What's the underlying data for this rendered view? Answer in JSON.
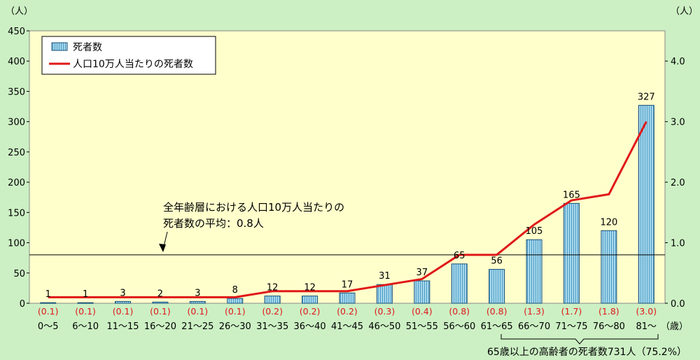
{
  "chart_data": {
    "type": "bar",
    "categories": [
      "0〜5",
      "6〜10",
      "11〜15",
      "16〜20",
      "21〜25",
      "26〜30",
      "31〜35",
      "36〜40",
      "41〜45",
      "46〜50",
      "51〜55",
      "56〜60",
      "61〜65",
      "66〜70",
      "71〜75",
      "76〜80",
      "81〜"
    ],
    "series": [
      {
        "name": "死者数",
        "kind": "bar",
        "axis": "left",
        "values": [
          1,
          1,
          3,
          2,
          3,
          8,
          12,
          12,
          17,
          31,
          37,
          65,
          56,
          105,
          165,
          120,
          327
        ]
      },
      {
        "name": "人口10万人当たりの死者数",
        "kind": "line",
        "axis": "right",
        "values": [
          0.1,
          0.1,
          0.1,
          0.1,
          0.1,
          0.1,
          0.2,
          0.2,
          0.2,
          0.3,
          0.4,
          0.8,
          0.8,
          1.3,
          1.7,
          1.8,
          3.0
        ],
        "labels": [
          "(0.1)",
          "(0.1)",
          "(0.1)",
          "(0.1)",
          "(0.1)",
          "(0.1)",
          "(0.2)",
          "(0.2)",
          "(0.2)",
          "(0.3)",
          "(0.4)",
          "(0.8)",
          "(0.8)",
          "(1.3)",
          "(1.7)",
          "(1.8)",
          "(3.0)"
        ]
      }
    ],
    "y_left": {
      "unit": "（人）",
      "min": 0,
      "max": 450,
      "ticks": [
        0,
        50,
        100,
        150,
        200,
        250,
        300,
        350,
        400,
        450
      ]
    },
    "y_right": {
      "unit": "（人）",
      "min": 0,
      "max": 4.5,
      "ticks": [
        "0.0",
        "1.0",
        "2.0",
        "3.0",
        "4.0"
      ]
    },
    "x_unit": "（歳）",
    "reference_line": {
      "value": 0.8,
      "annotation_lines": [
        "全年齢層における人口10万人当たりの",
        "死者数の平均：0.8人"
      ]
    },
    "bracket_note": "65歳以上の高齢者の死者数731人（75.2%）",
    "legend_position": "top-left",
    "colors": {
      "bar_fill": "#a8d8ec",
      "bar_stripe": "#4a9bc4",
      "line": "#e01818",
      "ratio_label": "#e01818",
      "plot_bg": "#ffffcc"
    }
  }
}
